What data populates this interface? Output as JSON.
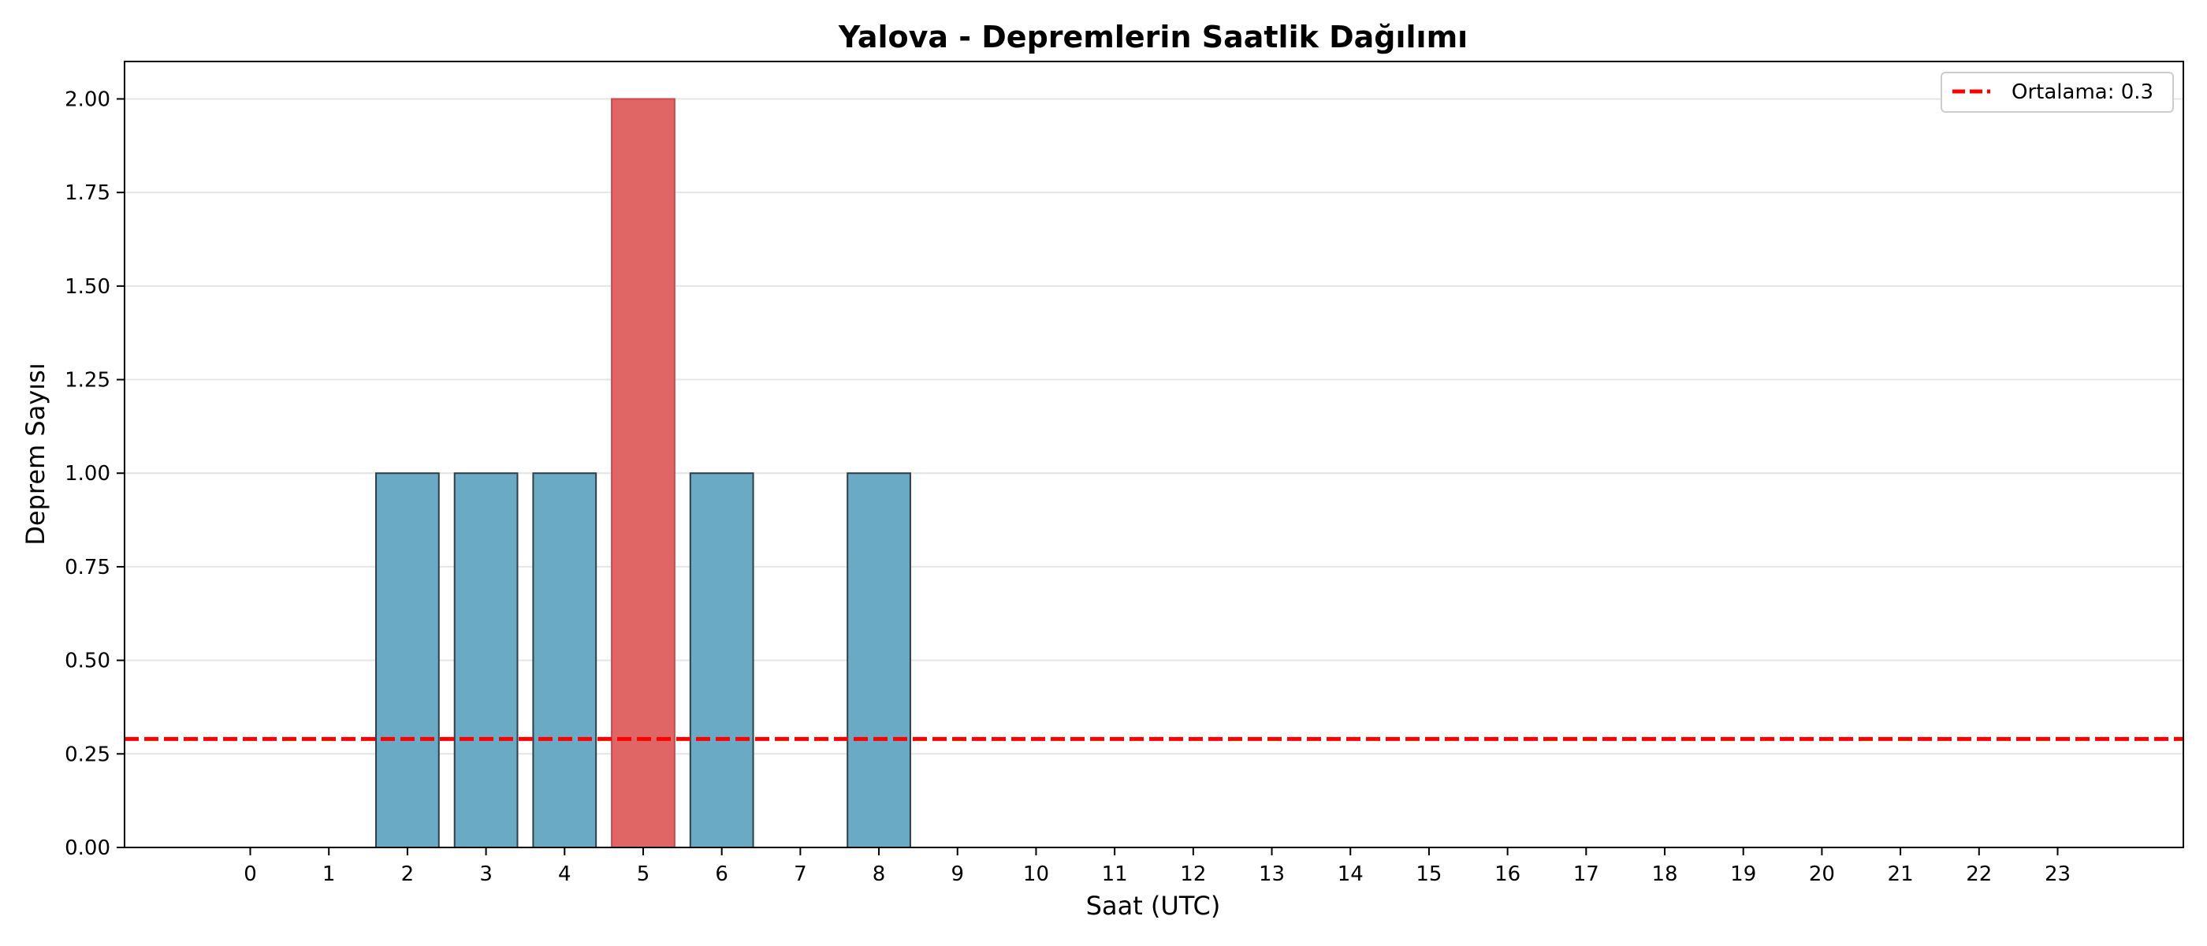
{
  "chart_data": {
    "type": "bar",
    "title": "Yalova - Depremlerin Saatlik Dağılımı",
    "xlabel": "Saat (UTC)",
    "ylabel": "Deprem Sayısı",
    "categories": [
      "0",
      "1",
      "2",
      "3",
      "4",
      "5",
      "6",
      "7",
      "8",
      "9",
      "10",
      "11",
      "12",
      "13",
      "14",
      "15",
      "16",
      "17",
      "18",
      "19",
      "20",
      "21",
      "22",
      "23"
    ],
    "values": [
      0,
      0,
      1,
      1,
      1,
      2,
      1,
      0,
      1,
      0,
      0,
      0,
      0,
      0,
      0,
      0,
      0,
      0,
      0,
      0,
      0,
      0,
      0,
      0
    ],
    "ylim": [
      0,
      2.1
    ],
    "yticks": [
      "0.00",
      "0.25",
      "0.50",
      "0.75",
      "1.00",
      "1.25",
      "1.50",
      "1.75",
      "2.00"
    ],
    "grid": "horizontal",
    "bar_color": "#6aaac4",
    "highlight_color": "#e06666",
    "highlight_rule": "max",
    "mean_line": {
      "value": 0.29,
      "label": "Ortalama: 0.3",
      "color": "#ff0000",
      "style": "dashed"
    },
    "legend_position": "top-right"
  }
}
